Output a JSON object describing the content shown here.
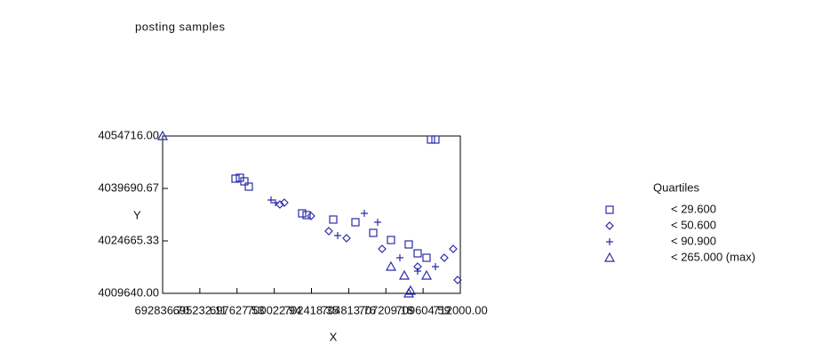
{
  "chart_data": {
    "type": "scatter",
    "title": "posting samples",
    "x_label": "X",
    "y_label": "Y",
    "xlim": [
      692836.7,
      712000
    ],
    "ylim": [
      4009640,
      4054716
    ],
    "xticks": [
      {
        "value": 692836.7,
        "label": "692836.70"
      },
      {
        "value": 695232.11,
        "label": "695232.11"
      },
      {
        "value": 697627.53,
        "label": "697627.53"
      },
      {
        "value": 700022.94,
        "label": "700022.94"
      },
      {
        "value": 702418.35,
        "label": "702418.35"
      },
      {
        "value": 704813.76,
        "label": "704813.76"
      },
      {
        "value": 707209.18,
        "label": "707209.18"
      },
      {
        "value": 709604.59,
        "label": "709604.59"
      },
      {
        "value": 712000,
        "label": "712000.00"
      }
    ],
    "yticks": [
      {
        "value": 4054716,
        "label": "4054716.00"
      },
      {
        "value": 4039690.67,
        "label": "4039690.67"
      },
      {
        "value": 4024665.33,
        "label": "4024665.33"
      },
      {
        "value": 4009640,
        "label": "4009640.00"
      }
    ],
    "legend_title": "Quartiles",
    "color": "#2a2aa8",
    "series": [
      {
        "name": "< 29.600",
        "marker": "square",
        "x": [
          710111,
          710397,
          697527,
          697813,
          698099,
          698385,
          701817,
          702103,
          703819,
          705249,
          706393,
          707537,
          708681,
          709253,
          709825
        ],
        "values": [
          4053703,
          4053703,
          4042496,
          4042751,
          4041732,
          4040204,
          4032563,
          4032054,
          4030780,
          4030016,
          4026960,
          4024922,
          4023649,
          4021102,
          4019828
        ]
      },
      {
        "name": "< 50.600",
        "marker": "diamond",
        "x": [
          700673,
          700387,
          702389,
          703533,
          704677,
          706965,
          709253,
          710969,
          711827,
          711541
        ],
        "values": [
          4035619,
          4035110,
          4031799,
          4027469,
          4025431,
          4022375,
          4017281,
          4019828,
          4013461,
          4022375
        ]
      },
      {
        "name": "< 90.900",
        "marker": "plus",
        "x": [
          699815,
          700101,
          705821,
          706679,
          704105,
          708109,
          709253,
          710397
        ],
        "values": [
          4036384,
          4035619,
          4032563,
          4030016,
          4026196,
          4019828,
          4016008,
          4017281
        ]
      },
      {
        "name": "< 265.000 (max)",
        "marker": "triangle",
        "x": [
          692836.7,
          708681,
          708796,
          707537,
          708395,
          709825
        ],
        "values": [
          4054716,
          4009640,
          4010404,
          4017281,
          4014734,
          4014734
        ]
      }
    ]
  }
}
